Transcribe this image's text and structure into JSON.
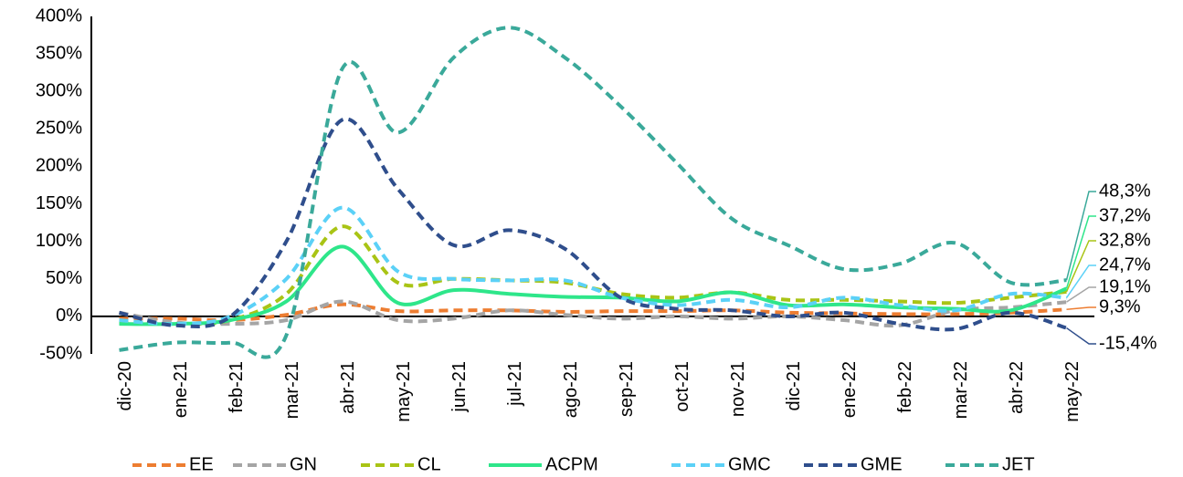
{
  "chart_data": {
    "type": "line",
    "categories": [
      "dic-20",
      "ene-21",
      "feb-21",
      "mar-21",
      "abr-21",
      "may-21",
      "jun-21",
      "jul-21",
      "ago-21",
      "sep-21",
      "oct-21",
      "nov-21",
      "dic-21",
      "ene-22",
      "feb-22",
      "mar-22",
      "abr-22",
      "may-22"
    ],
    "ylim": [
      -50,
      400
    ],
    "yticks": [
      {
        "value": -50,
        "label": "-50%"
      },
      {
        "value": 0,
        "label": "0%"
      },
      {
        "value": 50,
        "label": "50%"
      },
      {
        "value": 100,
        "label": "100%"
      },
      {
        "value": 150,
        "label": "150%"
      },
      {
        "value": 200,
        "label": "200%"
      },
      {
        "value": 250,
        "label": "250%"
      },
      {
        "value": 300,
        "label": "300%"
      },
      {
        "value": 350,
        "label": "350%"
      },
      {
        "value": 400,
        "label": "400%"
      }
    ],
    "grid": false,
    "legend": "bottom",
    "series": [
      {
        "name": "EE",
        "color": "#ed7d31",
        "dashed": true,
        "values": [
          -3,
          -3,
          -5,
          2,
          16,
          7,
          8,
          8,
          6,
          7,
          7,
          8,
          5,
          4,
          3,
          3,
          5,
          9.3
        ],
        "value_labels": [
          null,
          null,
          null,
          null,
          null,
          null,
          null,
          null,
          null,
          null,
          null,
          null,
          null,
          null,
          null,
          null,
          null,
          "9,3%"
        ]
      },
      {
        "name": "GN",
        "color": "#a5a5a5",
        "dashed": true,
        "values": [
          5,
          -8,
          -10,
          -5,
          20,
          -5,
          -3,
          8,
          2,
          -3,
          0,
          -3,
          0,
          -5,
          -12,
          8,
          12,
          19.1
        ],
        "value_labels": [
          null,
          null,
          null,
          null,
          null,
          null,
          null,
          null,
          null,
          null,
          null,
          null,
          null,
          null,
          null,
          null,
          null,
          "19,1%"
        ]
      },
      {
        "name": "CL",
        "color": "#a9c415",
        "dashed": true,
        "values": [
          -8,
          -10,
          -5,
          30,
          120,
          45,
          50,
          48,
          45,
          30,
          25,
          32,
          22,
          22,
          20,
          18,
          25,
          32.8
        ],
        "value_labels": [
          null,
          null,
          null,
          null,
          null,
          null,
          null,
          null,
          null,
          null,
          null,
          null,
          null,
          null,
          null,
          null,
          null,
          "32,8%"
        ]
      },
      {
        "name": "ACPM",
        "color": "#2ee68a",
        "dashed": false,
        "values": [
          -10,
          -10,
          -5,
          20,
          93,
          18,
          35,
          30,
          26,
          25,
          20,
          32,
          15,
          16,
          12,
          10,
          8,
          37.2
        ],
        "value_labels": [
          null,
          null,
          null,
          null,
          null,
          null,
          null,
          null,
          null,
          null,
          null,
          null,
          null,
          null,
          null,
          null,
          null,
          "37,2%"
        ]
      },
      {
        "name": "GMC",
        "color": "#5bd1f7",
        "dashed": true,
        "values": [
          -5,
          -10,
          0,
          50,
          145,
          60,
          50,
          48,
          48,
          25,
          15,
          22,
          12,
          25,
          15,
          8,
          30,
          24.7
        ],
        "value_labels": [
          null,
          null,
          null,
          null,
          null,
          null,
          null,
          null,
          null,
          null,
          null,
          null,
          null,
          null,
          null,
          null,
          null,
          "24,7%"
        ]
      },
      {
        "name": "GME",
        "color": "#2f4e8c",
        "dashed": true,
        "values": [
          5,
          -12,
          0,
          100,
          262,
          170,
          95,
          115,
          90,
          25,
          10,
          8,
          0,
          5,
          -10,
          -17,
          5,
          -15.4
        ],
        "value_labels": [
          null,
          null,
          null,
          null,
          null,
          null,
          null,
          null,
          null,
          null,
          null,
          null,
          null,
          null,
          null,
          null,
          null,
          "-15,4%"
        ]
      },
      {
        "name": "JET",
        "color": "#3aa99a",
        "dashed": true,
        "values": [
          -45,
          -35,
          -35,
          -25,
          330,
          245,
          345,
          385,
          345,
          280,
          205,
          130,
          95,
          63,
          70,
          98,
          45,
          48.3
        ],
        "value_labels": [
          null,
          null,
          null,
          null,
          null,
          null,
          null,
          null,
          null,
          null,
          null,
          null,
          null,
          null,
          null,
          null,
          null,
          "48,3%"
        ]
      }
    ]
  }
}
